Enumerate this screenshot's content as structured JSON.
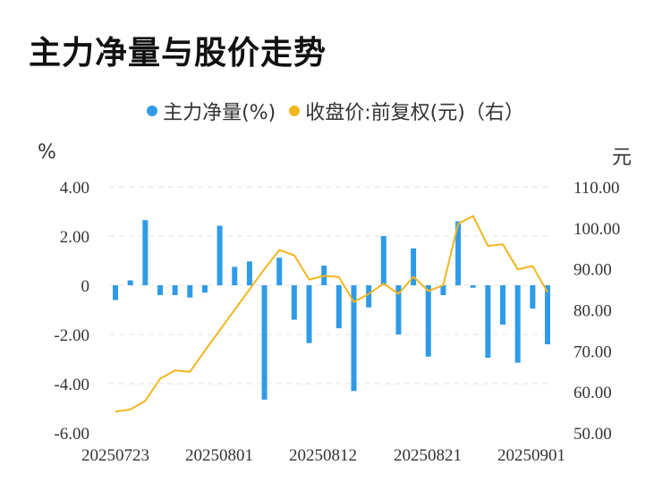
{
  "title": "主力净量与股价走势",
  "legend": {
    "items": [
      {
        "label": "主力净量(%)",
        "color": "#2f9be8"
      },
      {
        "label": "收盘价:前复权(元)（右）",
        "color": "#f2b61f"
      }
    ]
  },
  "chart_data": {
    "type": "bar+line",
    "title": "主力净量与股价走势",
    "left_axis_unit": "%",
    "right_axis_unit": "元",
    "left_ticks": [
      "4.00",
      "2.00",
      "0",
      "-2.00",
      "-4.00",
      "-6.00"
    ],
    "right_ticks": [
      "110.00",
      "100.00",
      "90.00",
      "80.00",
      "70.00",
      "60.00",
      "50.00"
    ],
    "left_ylim": [
      -6,
      4
    ],
    "right_ylim": [
      50,
      110
    ],
    "x_tick_labels": [
      "20250723",
      "20250801",
      "20250812",
      "20250821",
      "20250901"
    ],
    "grid": true,
    "legend_position": "top-center",
    "series": [
      {
        "name": "主力净量(%)",
        "type": "bar",
        "axis": "left",
        "color": "#2f9be8",
        "values": [
          -0.6,
          0.2,
          2.65,
          -0.4,
          -0.4,
          -0.5,
          -0.3,
          2.42,
          0.75,
          0.97,
          -4.65,
          1.12,
          -1.4,
          -2.35,
          0.8,
          -1.75,
          -4.3,
          -0.9,
          2.0,
          -2.0,
          1.5,
          -2.9,
          -0.4,
          2.6,
          -0.1,
          -2.95,
          -1.6,
          -3.15,
          -0.95,
          -2.4
        ]
      },
      {
        "name": "收盘价:前复权(元)（右）",
        "type": "line",
        "axis": "right",
        "color": "#f2b61f",
        "values": [
          55.2,
          55.7,
          57.8,
          63.2,
          65.2,
          64.9,
          70.0,
          75.0,
          80.0,
          85.0,
          90.0,
          94.6,
          93.3,
          87.4,
          88.3,
          88.0,
          81.9,
          83.9,
          86.4,
          83.9,
          88.1,
          84.6,
          86.0,
          101.0,
          102.9,
          95.6,
          96.0,
          89.9,
          90.7,
          84.3
        ]
      }
    ]
  }
}
